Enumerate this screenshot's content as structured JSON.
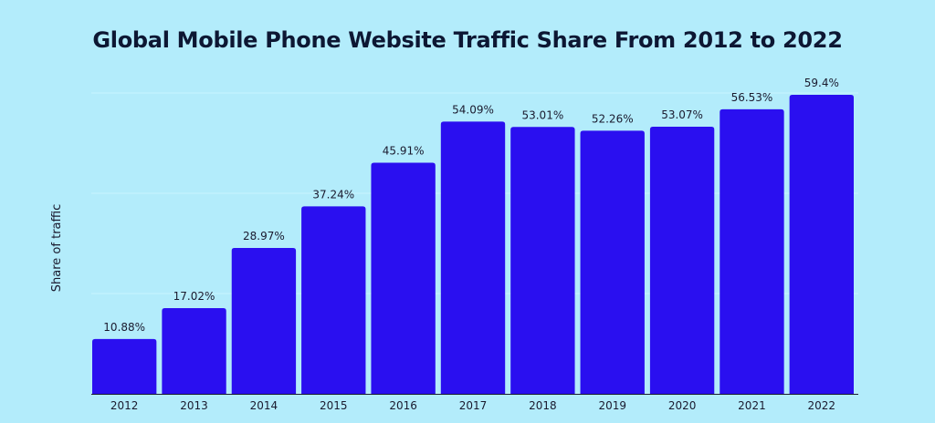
{
  "chart_data": {
    "type": "bar",
    "title": "Global Mobile Phone Website Traffic Share From 2012 to 2022",
    "xlabel": "",
    "ylabel": "Share of traffic",
    "categories": [
      "2012",
      "2013",
      "2014",
      "2015",
      "2016",
      "2017",
      "2018",
      "2019",
      "2020",
      "2021",
      "2022"
    ],
    "values": [
      10.88,
      17.02,
      28.97,
      37.24,
      45.91,
      54.09,
      53.01,
      52.26,
      53.07,
      56.53,
      59.4
    ],
    "data_labels": [
      "10.88%",
      "17.02%",
      "28.97%",
      "37.24%",
      "45.91%",
      "54.09%",
      "53.01%",
      "52.26%",
      "53.07%",
      "56.53%",
      "59.4%"
    ],
    "ylim": [
      0,
      60
    ],
    "grid": true,
    "bar_color": "#2a0ff0",
    "grid_color": "#c9f3ff",
    "axis_color": "#1a1a2e"
  }
}
